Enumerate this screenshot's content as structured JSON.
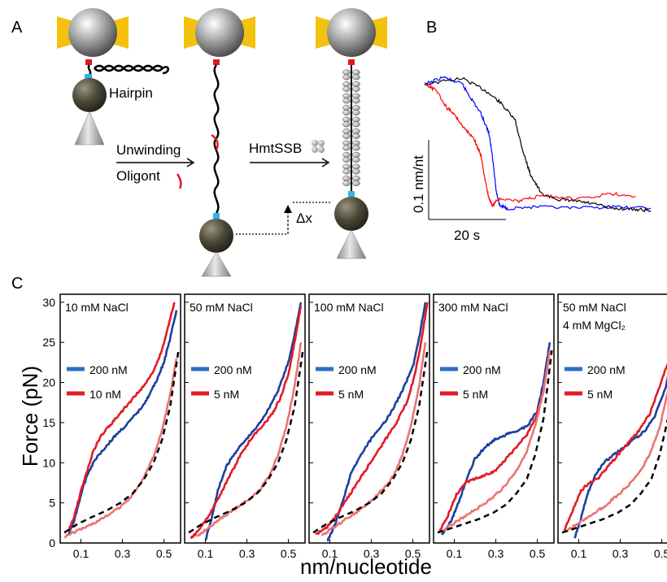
{
  "panels": {
    "a": "A",
    "b": "B",
    "c": "C"
  },
  "diagram": {
    "hairpin": "Hairpin",
    "unwinding": "Unwinding",
    "oligont": "Oligont",
    "hmtssb": "HmtSSB",
    "delta_x": "Δx"
  },
  "trace": {
    "type": "line",
    "y_scale_label": "0.1 nm/nt",
    "x_scale_label": "20 s",
    "colors": [
      "#000000",
      "#0000ff",
      "#ff0000"
    ],
    "series": [
      {
        "color": "#000000",
        "t": [
          0,
          10,
          16,
          20,
          24,
          26,
          28,
          31,
          36,
          40,
          44,
          50,
          56,
          60
        ],
        "y": [
          0.1,
          0.105,
          0.095,
          0.085,
          0.07,
          0.045,
          0.025,
          0.008,
          0.003,
          0.002,
          0.0,
          -0.004,
          -0.005,
          -0.006
        ]
      },
      {
        "color": "#0000ff",
        "t": [
          0,
          5,
          10,
          12,
          15,
          17,
          18,
          19,
          20,
          22,
          30,
          40,
          50,
          60
        ],
        "y": [
          0.1,
          0.106,
          0.1,
          0.09,
          0.075,
          0.06,
          0.04,
          0.01,
          -0.002,
          -0.004,
          -0.003,
          -0.004,
          -0.003,
          -0.004
        ]
      },
      {
        "color": "#ff0000",
        "t": [
          0,
          3,
          6,
          8,
          10,
          13,
          15,
          16,
          17,
          18,
          20,
          25,
          30,
          40,
          50,
          56
        ],
        "y": [
          0.1,
          0.095,
          0.08,
          0.075,
          0.065,
          0.055,
          0.04,
          0.02,
          0.005,
          -0.002,
          0.005,
          0.002,
          0.006,
          0.004,
          0.008,
          0.006
        ]
      }
    ]
  },
  "chart_data": [
    {
      "type": "line",
      "ylabel": "Force (pN)",
      "xlabel": "nm/nucleotide",
      "xlim": [
        0.0,
        0.58
      ],
      "ylim": [
        0,
        31
      ],
      "xticks": [
        "0.1",
        "0.3",
        "0.5"
      ],
      "yticks": [
        "0",
        "5",
        "10",
        "15",
        "20",
        "25",
        "30"
      ],
      "legend_position": "top-left",
      "colors": {
        "high": "#2a6fc4",
        "high_dark": "#1d3f9e",
        "low": "#e21b25",
        "low_light": "#ea7474",
        "model": "#000000"
      },
      "panels": [
        {
          "title": [
            "10 mM NaCl"
          ],
          "legend": [
            {
              "label": "200 nM",
              "color": "#2a6fc4"
            },
            {
              "label": "10 nM",
              "color": "#e21b25"
            }
          ],
          "series": [
            {
              "name": "200 nM",
              "color": "#1d3f9e",
              "x": [
                0.04,
                0.07,
                0.1,
                0.13,
                0.17,
                0.22,
                0.27,
                0.33,
                0.38,
                0.42,
                0.46,
                0.5,
                0.53,
                0.56
              ],
              "y": [
                1.0,
                3.0,
                6.0,
                8.5,
                10.5,
                12.0,
                13.5,
                15.0,
                16.5,
                18.0,
                20.0,
                22.5,
                25.5,
                29.0
              ]
            },
            {
              "name": "10 nM",
              "color": "#e21b25",
              "x": [
                0.04,
                0.07,
                0.1,
                0.13,
                0.16,
                0.2,
                0.25,
                0.3,
                0.35,
                0.4,
                0.45,
                0.49,
                0.52,
                0.55
              ],
              "y": [
                1.5,
                3.5,
                6.5,
                9.0,
                11.5,
                13.5,
                15.0,
                16.5,
                18.0,
                19.5,
                21.5,
                24.0,
                27.0,
                30.0
              ]
            },
            {
              "name": "10 nM relax",
              "color": "#ea7474",
              "x": [
                0.02,
                0.08,
                0.15,
                0.22,
                0.29,
                0.35,
                0.4,
                0.45,
                0.49,
                0.53,
                0.56
              ],
              "y": [
                0.8,
                1.5,
                2.3,
                3.3,
                4.5,
                6.0,
                8.0,
                10.8,
                14.0,
                18.5,
                23.0
              ]
            },
            {
              "name": "model",
              "color": "#000000",
              "dashed": true,
              "x": [
                0.02,
                0.08,
                0.15,
                0.22,
                0.29,
                0.35,
                0.4,
                0.45,
                0.49,
                0.53,
                0.57
              ],
              "y": [
                1.3,
                2.3,
                3.2,
                4.0,
                5.0,
                6.2,
                7.8,
                10.0,
                12.8,
                17.0,
                24.0
              ]
            }
          ]
        },
        {
          "title": [
            "50 mM NaCl"
          ],
          "legend": [
            {
              "label": "200 nM",
              "color": "#2a6fc4"
            },
            {
              "label": "5 nM",
              "color": "#e21b25"
            }
          ],
          "series": [
            {
              "name": "200 nM",
              "color": "#1d3f9e",
              "x": [
                0.1,
                0.13,
                0.16,
                0.2,
                0.25,
                0.3,
                0.35,
                0.4,
                0.45,
                0.5,
                0.53,
                0.56
              ],
              "y": [
                0.3,
                3.0,
                6.5,
                9.5,
                11.5,
                13.0,
                14.5,
                16.5,
                19.0,
                22.5,
                26.0,
                30.0
              ]
            },
            {
              "name": "5 nM",
              "color": "#e21b25",
              "x": [
                0.03,
                0.08,
                0.12,
                0.17,
                0.22,
                0.27,
                0.32,
                0.37,
                0.42,
                0.46,
                0.5,
                0.53,
                0.56
              ],
              "y": [
                0.5,
                2.0,
                3.5,
                6.0,
                8.5,
                11.0,
                13.0,
                14.5,
                16.0,
                18.0,
                21.0,
                25.0,
                29.5
              ]
            },
            {
              "name": "5 nM relax",
              "color": "#ea7474",
              "x": [
                0.06,
                0.12,
                0.18,
                0.24,
                0.3,
                0.36,
                0.41,
                0.45,
                0.49,
                0.53,
                0.56
              ],
              "y": [
                0.8,
                2.0,
                3.2,
                4.2,
                5.3,
                6.5,
                8.5,
                11.0,
                14.5,
                19.5,
                25.0
              ]
            },
            {
              "name": "model",
              "color": "#000000",
              "dashed": true,
              "x": [
                0.02,
                0.08,
                0.15,
                0.22,
                0.29,
                0.35,
                0.4,
                0.45,
                0.49,
                0.53,
                0.57
              ],
              "y": [
                1.3,
                2.3,
                3.2,
                4.0,
                5.0,
                6.2,
                7.8,
                10.0,
                12.8,
                17.0,
                24.0
              ]
            }
          ]
        },
        {
          "title": [
            "100 mM NaCl"
          ],
          "legend": [
            {
              "label": "200 nM",
              "color": "#2a6fc4"
            },
            {
              "label": "5 nM",
              "color": "#e21b25"
            }
          ],
          "series": [
            {
              "name": "200 nM",
              "color": "#1d3f9e",
              "x": [
                0.09,
                0.12,
                0.16,
                0.2,
                0.25,
                0.3,
                0.35,
                0.4,
                0.45,
                0.5,
                0.53,
                0.56
              ],
              "y": [
                0.3,
                2.0,
                5.0,
                8.5,
                11.0,
                13.0,
                14.5,
                16.5,
                19.0,
                22.0,
                25.5,
                30.0
              ]
            },
            {
              "name": "5 nM",
              "color": "#e21b25",
              "x": [
                0.03,
                0.08,
                0.12,
                0.17,
                0.22,
                0.27,
                0.32,
                0.37,
                0.42,
                0.47,
                0.51,
                0.54,
                0.57
              ],
              "y": [
                1.0,
                1.8,
                3.0,
                5.0,
                7.0,
                9.0,
                11.0,
                13.0,
                15.0,
                17.5,
                21.0,
                25.0,
                30.0
              ]
            },
            {
              "name": "5 nM relax",
              "color": "#ea7474",
              "x": [
                0.06,
                0.12,
                0.18,
                0.24,
                0.3,
                0.36,
                0.41,
                0.45,
                0.49,
                0.53,
                0.56
              ],
              "y": [
                0.9,
                2.0,
                3.0,
                4.0,
                5.3,
                6.8,
                8.5,
                11.0,
                14.5,
                19.5,
                25.0
              ]
            },
            {
              "name": "model",
              "color": "#000000",
              "dashed": true,
              "x": [
                0.02,
                0.08,
                0.15,
                0.22,
                0.29,
                0.35,
                0.4,
                0.45,
                0.49,
                0.53,
                0.57
              ],
              "y": [
                1.3,
                2.3,
                3.2,
                4.0,
                5.0,
                6.2,
                7.8,
                10.0,
                12.8,
                17.0,
                24.0
              ]
            }
          ]
        },
        {
          "title": [
            "300 mM NaCl"
          ],
          "legend": [
            {
              "label": "200 nM",
              "color": "#2a6fc4"
            },
            {
              "label": "5 nM",
              "color": "#e21b25"
            }
          ],
          "series": [
            {
              "name": "200 nM",
              "color": "#1d3f9e",
              "x": [
                0.04,
                0.08,
                0.12,
                0.16,
                0.2,
                0.25,
                0.3,
                0.35,
                0.4,
                0.45,
                0.5,
                0.53,
                0.56
              ],
              "y": [
                1.0,
                2.5,
                5.0,
                8.0,
                10.5,
                12.0,
                13.0,
                13.5,
                14.0,
                14.5,
                16.5,
                20.0,
                25.0
              ]
            },
            {
              "name": "5 nM",
              "color": "#e21b25",
              "x": [
                0.03,
                0.07,
                0.11,
                0.15,
                0.2,
                0.25,
                0.3,
                0.35,
                0.4,
                0.45,
                0.49,
                0.53,
                0.56
              ],
              "y": [
                1.5,
                3.5,
                6.0,
                7.5,
                8.0,
                8.5,
                9.0,
                10.5,
                12.0,
                13.5,
                15.5,
                19.0,
                24.0
              ]
            },
            {
              "name": "5 nM relax",
              "color": "#ea7474",
              "x": [
                0.04,
                0.1,
                0.16,
                0.22,
                0.28,
                0.34,
                0.4,
                0.45,
                0.49,
                0.53,
                0.56
              ],
              "y": [
                1.5,
                2.5,
                3.5,
                4.5,
                5.5,
                7.0,
                9.0,
                11.5,
                14.5,
                19.0,
                24.0
              ]
            },
            {
              "name": "model",
              "color": "#000000",
              "dashed": true,
              "x": [
                0.02,
                0.08,
                0.15,
                0.22,
                0.29,
                0.35,
                0.4,
                0.45,
                0.49,
                0.53,
                0.57
              ],
              "y": [
                1.3,
                1.8,
                2.4,
                3.0,
                3.8,
                4.8,
                6.2,
                8.0,
                11.0,
                15.5,
                24.0
              ]
            }
          ]
        },
        {
          "title": [
            "50 mM NaCl",
            "4 mM MgCl₂"
          ],
          "legend": [
            {
              "label": "200 nM",
              "color": "#2a6fc4"
            },
            {
              "label": "5 nM",
              "color": "#e21b25"
            }
          ],
          "series": [
            {
              "name": "200 nM",
              "color": "#1d3f9e",
              "x": [
                0.08,
                0.11,
                0.14,
                0.18,
                0.22,
                0.27,
                0.32,
                0.37,
                0.42,
                0.47,
                0.52,
                0.56
              ],
              "y": [
                0.5,
                3.0,
                6.0,
                8.5,
                10.0,
                11.0,
                12.0,
                13.0,
                14.0,
                16.0,
                19.5,
                25.0
              ]
            },
            {
              "name": "5 nM",
              "color": "#e21b25",
              "x": [
                0.03,
                0.07,
                0.11,
                0.15,
                0.19,
                0.24,
                0.29,
                0.34,
                0.39,
                0.44,
                0.49,
                0.53,
                0.56
              ],
              "y": [
                1.5,
                4.0,
                6.5,
                7.5,
                8.0,
                9.5,
                11.0,
                12.5,
                14.0,
                16.0,
                19.5,
                22.5,
                25.0
              ]
            },
            {
              "name": "5 nM relax",
              "color": "#ea7474",
              "x": [
                0.04,
                0.1,
                0.16,
                0.22,
                0.28,
                0.34,
                0.4,
                0.45,
                0.49,
                0.53,
                0.56
              ],
              "y": [
                1.5,
                2.5,
                3.5,
                4.5,
                5.8,
                7.2,
                9.0,
                11.5,
                14.5,
                19.0,
                24.0
              ]
            },
            {
              "name": "model",
              "color": "#000000",
              "dashed": true,
              "x": [
                0.02,
                0.08,
                0.15,
                0.22,
                0.29,
                0.35,
                0.4,
                0.45,
                0.49,
                0.53,
                0.57
              ],
              "y": [
                1.3,
                1.8,
                2.4,
                3.0,
                3.8,
                4.8,
                6.2,
                8.0,
                11.0,
                15.5,
                24.0
              ]
            }
          ]
        }
      ]
    }
  ]
}
